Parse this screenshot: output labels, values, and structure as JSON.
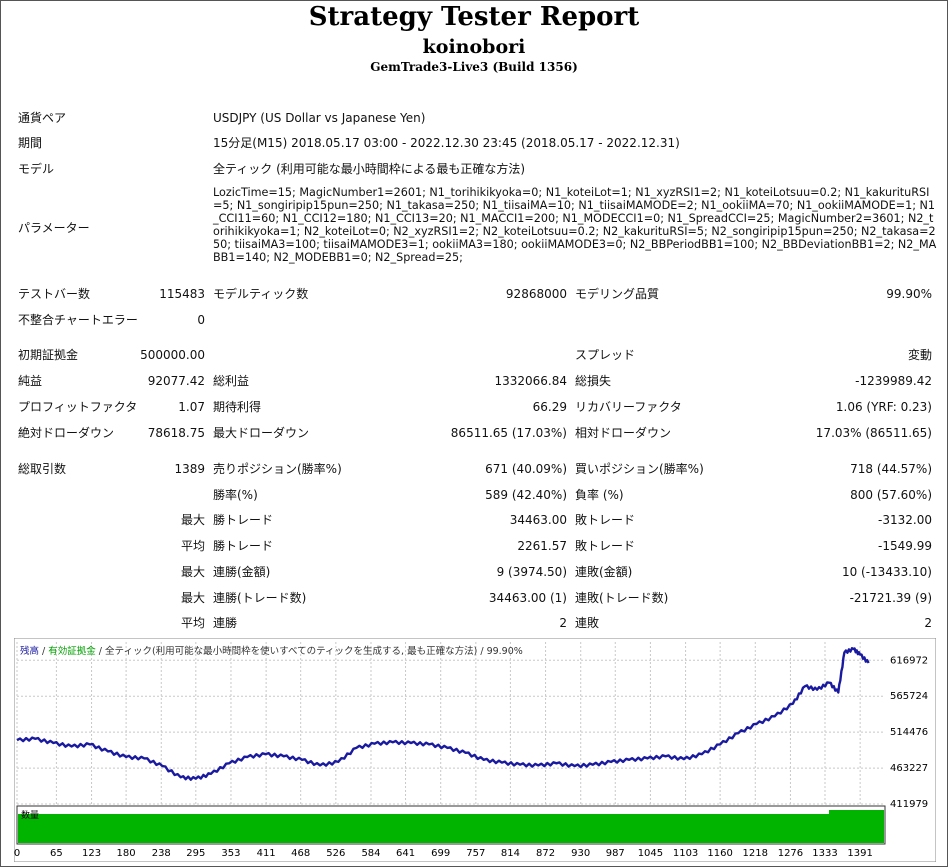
{
  "report": {
    "title": "Strategy Tester Report",
    "ea_name": "koinobori",
    "server": "GemTrade3-Live3 (Build 1356)"
  },
  "info": {
    "symbol_label": "通貨ペア",
    "symbol_value": "USDJPY (US Dollar vs Japanese Yen)",
    "period_label": "期間",
    "period_value": "15分足(M15) 2018.05.17 03:00 - 2022.12.30 23:45 (2018.05.17 - 2022.12.31)",
    "model_label": "モデル",
    "model_value": "全ティック (利用可能な最小時間枠による最も正確な方法)",
    "params_label": "パラメーター",
    "params_value": "LozicTime=15; MagicNumber1=2601; N1_torihikikyoka=0; N1_koteiLot=1; N1_xyzRSI1=2; N1_koteiLotsuu=0.2; N1_kakurituRSI=5; N1_songiripip15pun=250; N1_takasa=250; N1_tiisaiMA=10; N1_tiisaiMAMODE=2; N1_ookiiMA=70; N1_ookiiMAMODE=1; N1_CCI11=60; N1_CCI12=180; N1_CCI13=20; N1_MACCI1=200; N1_MODECCI1=0; N1_SpreadCCI=25; MagicNumber2=3601; N2_torihikikyoka=1; N2_koteiLot=0; N2_xyzRSI1=2; N2_koteiLotsuu=0.2; N2_kakurituRSI=5; N2_songiripip15pun=250; N2_takasa=250; tiisaiMA3=100; tiisaiMAMODE3=1; ookiiMA3=180; ookiiMAMODE3=0; N2_BBPeriodBB1=100; N2_BBDeviationBB1=2; N2_MABB1=140; N2_MODEBB1=0; N2_Spread=25;"
  },
  "bars": {
    "bars_label": "テストバー数",
    "bars_value": "115483",
    "ticks_label": "モデルティック数",
    "ticks_value": "92868000",
    "quality_label": "モデリング品質",
    "quality_value": "99.90%",
    "errors_label": "不整合チャートエラー",
    "errors_value": "0"
  },
  "stats": {
    "deposit_label": "初期証拠金",
    "deposit_value": "500000.00",
    "spread_label": "スプレッド",
    "spread_value": "変動",
    "net_label": "純益",
    "net_value": "92077.42",
    "gross_profit_label": "総利益",
    "gross_profit_value": "1332066.84",
    "gross_loss_label": "総損失",
    "gross_loss_value": "-1239989.42",
    "pf_label": "プロフィットファクタ",
    "pf_value": "1.07",
    "payoff_label": "期待利得",
    "payoff_value": "66.29",
    "recovery_label": "リカバリーファクタ",
    "recovery_value": "1.06 (YRF: 0.23)",
    "abs_dd_label": "絶対ドローダウン",
    "abs_dd_value": "78618.75",
    "max_dd_label": "最大ドローダウン",
    "max_dd_value": "86511.65 (17.03%)",
    "rel_dd_label": "相対ドローダウン",
    "rel_dd_value": "17.03% (86511.65)"
  },
  "trades": {
    "total_label": "総取引数",
    "total_value": "1389",
    "short_label": "売りポジション(勝率%)",
    "short_value": "671 (40.09%)",
    "long_label": "買いポジション(勝率%)",
    "long_value": "718 (44.57%)",
    "winrate_label": "勝率(%)",
    "winrate_value": "589 (42.40%)",
    "lossrate_label": "負率 (%)",
    "lossrate_value": "800 (57.60%)",
    "max_label": "最大",
    "avg_label": "平均",
    "largest_win_label": "勝トレード",
    "largest_win_value": "34463.00",
    "largest_loss_label": "敗トレード",
    "largest_loss_value": "-3132.00",
    "avg_win_label": "勝トレード",
    "avg_win_value": "2261.57",
    "avg_loss_label": "敗トレード",
    "avg_loss_value": "-1549.99",
    "max_consec_wins_money_label": "連勝(金額)",
    "max_consec_wins_money_value": "9 (3974.50)",
    "max_consec_losses_money_label": "連敗(金額)",
    "max_consec_losses_money_value": "10 (-13433.10)",
    "max_consec_profit_label": "連勝(トレード数)",
    "max_consec_profit_value": "34463.00 (1)",
    "max_consec_loss_label": "連敗(トレード数)",
    "max_consec_loss_value": "-21721.39 (9)",
    "avg_consec_wins_label": "連勝",
    "avg_consec_wins_value": "2",
    "avg_consec_losses_label": "連敗",
    "avg_consec_losses_value": "2"
  },
  "chart_data": {
    "type": "line",
    "legend": {
      "balance": "残高",
      "sep1": " / ",
      "equity": "有効証拠金",
      "sep2": " / ",
      "model": "全ティック(利用可能な最小時間枠を使いすべてのティックを生成する, 最も正確な方法)",
      "sep3": " / ",
      "quality": "99.90%"
    },
    "volume_label": "数量",
    "y_ticks": [
      "616972",
      "565724",
      "514476",
      "463227",
      "411979"
    ],
    "y_tick_values": [
      616972,
      565724,
      514476,
      463227,
      411979
    ],
    "ylim": [
      411979,
      643000
    ],
    "x_ticks": [
      "0",
      "65",
      "123",
      "180",
      "238",
      "295",
      "353",
      "411",
      "468",
      "526",
      "584",
      "641",
      "699",
      "757",
      "814",
      "872",
      "930",
      "987",
      "1045",
      "1103",
      "1160",
      "1218",
      "1276",
      "1333",
      "1391"
    ],
    "xlim": [
      0,
      1432
    ],
    "x": [
      0,
      30,
      60,
      90,
      120,
      150,
      180,
      210,
      240,
      270,
      295,
      320,
      350,
      380,
      410,
      440,
      470,
      500,
      530,
      560,
      590,
      620,
      650,
      680,
      710,
      740,
      770,
      800,
      830,
      860,
      890,
      920,
      950,
      980,
      1010,
      1040,
      1070,
      1100,
      1130,
      1160,
      1190,
      1220,
      1250,
      1280,
      1300,
      1320,
      1340,
      1355,
      1365,
      1380,
      1391,
      1405
    ],
    "y": [
      503000,
      505000,
      499000,
      494000,
      497000,
      487000,
      479000,
      477000,
      466000,
      450000,
      448000,
      455000,
      470000,
      479000,
      483000,
      480000,
      475000,
      467000,
      472000,
      492000,
      498000,
      500000,
      499000,
      497000,
      492000,
      485000,
      475000,
      471000,
      468000,
      467000,
      470000,
      466000,
      468000,
      472000,
      475000,
      477000,
      480000,
      476000,
      483000,
      497000,
      513000,
      526000,
      537000,
      555000,
      580000,
      575000,
      585000,
      571000,
      628000,
      633000,
      625000,
      613000
    ],
    "colors": {
      "balance": "#1a1aa0",
      "equity": "#00a000",
      "volume": "#00b400",
      "grid": "#c8c8c8",
      "bg": "#ffffff"
    }
  }
}
